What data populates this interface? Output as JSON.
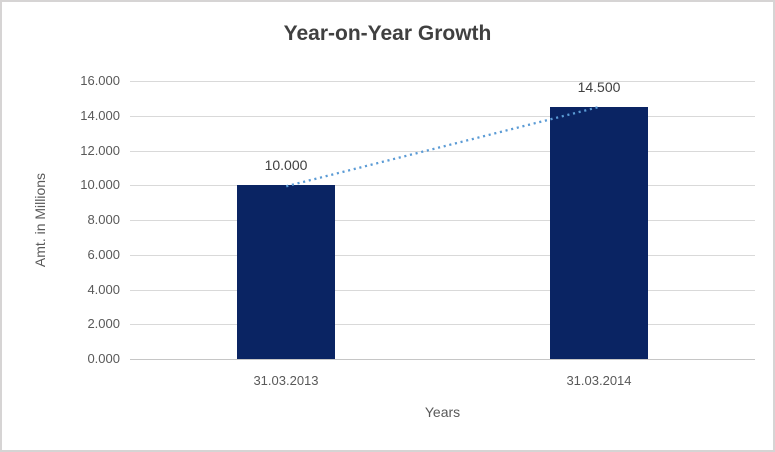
{
  "chart_data": {
    "type": "bar",
    "title": "Year-on-Year Growth",
    "xlabel": "Years",
    "ylabel": "Amt. in Millions",
    "categories": [
      "31.03.2013",
      "31.03.2014"
    ],
    "values": [
      10.0,
      14.5
    ],
    "data_labels": [
      "10.000",
      "14.500"
    ],
    "y_ticks": [
      "0.000",
      "2.000",
      "4.000",
      "6.000",
      "8.000",
      "10.000",
      "12.000",
      "14.000",
      "16.000"
    ],
    "ylim": [
      0,
      16
    ],
    "y_step": 2,
    "grid": true,
    "legend": false,
    "bar_color": "#0a2463",
    "trendline": {
      "type": "linear",
      "style": "dotted",
      "color": "#5b9bd5",
      "from_value": 10.0,
      "to_value": 14.5
    },
    "gridline_color": "#d9d9d9",
    "title_color": "#404040",
    "label_color": "#595959",
    "data_label_color": "#404040"
  }
}
